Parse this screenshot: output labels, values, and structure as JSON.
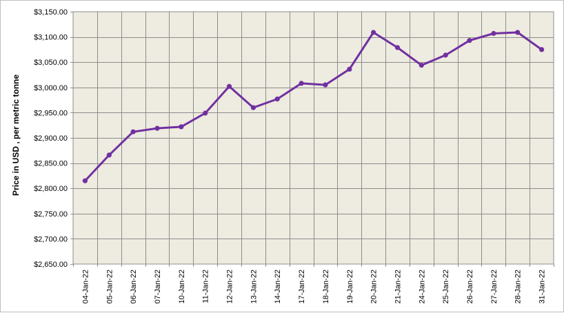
{
  "chart_data": {
    "type": "line",
    "title": "",
    "xlabel": "",
    "ylabel": "Price in USD , per metric tonne",
    "ylim": [
      2650,
      3150
    ],
    "ytick_step": 50,
    "ytick_labels": [
      "$2,650.00",
      "$2,700.00",
      "$2,750.00",
      "$2,800.00",
      "$2,850.00",
      "$2,900.00",
      "$2,950.00",
      "$3,000.00",
      "$3,050.00",
      "$3,100.00",
      "$3,150.00"
    ],
    "grid": true,
    "legend": "none",
    "categories": [
      "04-Jan-22",
      "05-Jan-22",
      "06-Jan-22",
      "07-Jan-22",
      "10-Jan-22",
      "11-Jan-22",
      "12-Jan-22",
      "13-Jan-22",
      "14-Jan-22",
      "17-Jan-22",
      "18-Jan-22",
      "19-Jan-22",
      "20-Jan-22",
      "21-Jan-22",
      "24-Jan-22",
      "25-Jan-22",
      "26-Jan-22",
      "27-Jan-22",
      "28-Jan-22",
      "31-Jan-22"
    ],
    "series": [
      {
        "values": [
          2815,
          2866,
          2912,
          2919,
          2922,
          2949,
          3002,
          2960,
          2977,
          3008,
          3005,
          3036,
          3109,
          3079,
          3044,
          3064,
          3093,
          3107,
          3109,
          3075
        ],
        "color": "#7030a0"
      }
    ],
    "plot_background": "#eeebe0",
    "grid_color": "#8c8c8c"
  }
}
